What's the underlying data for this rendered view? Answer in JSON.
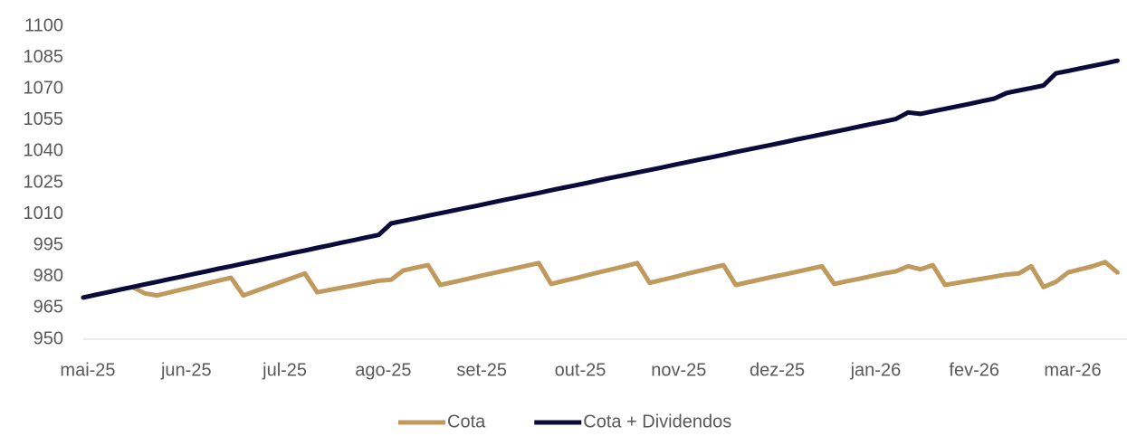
{
  "chart_data": {
    "type": "line",
    "categories": [
      "mai-25",
      null,
      null,
      null,
      null,
      null,
      null,
      null,
      "jun-25",
      null,
      null,
      null,
      null,
      null,
      null,
      null,
      "jul-25",
      null,
      null,
      null,
      null,
      null,
      null,
      null,
      "ago-25",
      null,
      null,
      null,
      null,
      null,
      null,
      null,
      "set-25",
      null,
      null,
      null,
      null,
      null,
      null,
      null,
      "out-25",
      null,
      null,
      null,
      null,
      null,
      null,
      null,
      "nov-25",
      null,
      null,
      null,
      null,
      null,
      null,
      null,
      "dez-25",
      null,
      null,
      null,
      null,
      null,
      null,
      null,
      "jan-26",
      null,
      null,
      null,
      null,
      null,
      null,
      null,
      "fev-26",
      null,
      null,
      null,
      null,
      null,
      null,
      null,
      "mar-26",
      null,
      null,
      null,
      null
    ],
    "series": [
      {
        "name": "Cota",
        "color": "#bf9a5c",
        "values": [
          970,
          971.3,
          972.5,
          973.8,
          975,
          972,
          971,
          972.4,
          973.8,
          975.2,
          976.7,
          978.1,
          979.5,
          971,
          973.1,
          975.2,
          977.3,
          979.4,
          981.5,
          972.5,
          973.6,
          974.7,
          975.8,
          976.9,
          978,
          978.5,
          983,
          984.3,
          985.5,
          976,
          977.3,
          978.6,
          980,
          981.3,
          982.6,
          983.9,
          985.2,
          986.5,
          976.5,
          977.9,
          979.3,
          980.8,
          982.2,
          983.6,
          985,
          986.5,
          977,
          978.4,
          979.8,
          981.3,
          982.7,
          984.1,
          985.5,
          976,
          977.3,
          978.6,
          979.9,
          981.1,
          982.4,
          983.7,
          985,
          976.5,
          977.8,
          978.9,
          980.2,
          981.5,
          982.5,
          985,
          983.5,
          985.5,
          976,
          977,
          978,
          979,
          980,
          981,
          981.5,
          985,
          975,
          977.5,
          982,
          983.5,
          985,
          987,
          982
        ]
      },
      {
        "name": "Cota + Dividendos",
        "color": "#0b0b3b",
        "values": [
          970,
          971.3,
          972.5,
          973.8,
          975,
          976.3,
          977.5,
          978.8,
          980,
          981.3,
          982.5,
          983.8,
          985,
          986.3,
          987.5,
          988.8,
          990,
          991.3,
          992.5,
          993.8,
          995,
          996.3,
          997.5,
          998.8,
          1000,
          1005.5,
          1006.7,
          1007.9,
          1009.2,
          1010.4,
          1011.6,
          1012.8,
          1014,
          1015.3,
          1016.5,
          1017.7,
          1018.9,
          1020.1,
          1021.4,
          1022.6,
          1023.8,
          1025,
          1026.3,
          1027.5,
          1028.7,
          1029.9,
          1031.1,
          1032.3,
          1033.6,
          1034.8,
          1036,
          1037.2,
          1038.4,
          1039.7,
          1040.9,
          1042.1,
          1043.3,
          1044.5,
          1045.8,
          1047,
          1048.2,
          1049.4,
          1050.6,
          1051.9,
          1053.1,
          1054.3,
          1055.5,
          1058.7,
          1058,
          1059.2,
          1060.4,
          1061.6,
          1062.8,
          1064.1,
          1065.3,
          1068,
          1069.2,
          1070.4,
          1071.6,
          1077.4,
          1078.6,
          1079.8,
          1081,
          1082.2,
          1083.5
        ]
      }
    ],
    "ylim": [
      950,
      1100
    ],
    "yticks": [
      950,
      965,
      980,
      995,
      1010,
      1025,
      1040,
      1055,
      1070,
      1085,
      1100
    ],
    "grid": false,
    "legend": "bottom"
  }
}
